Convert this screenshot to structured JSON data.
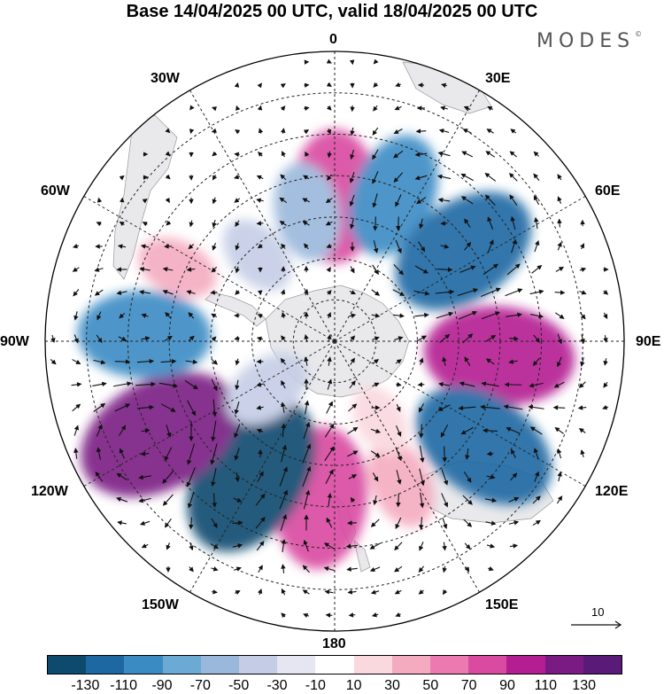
{
  "title": "Base 14/04/2025 00 UTC, valid 18/04/2025 00 UTC",
  "brand": "MODES",
  "brand_mark": "©",
  "longitude_labels": {
    "lon_0": "0",
    "lon_30e": "30E",
    "lon_60e": "60E",
    "lon_90e": "90E",
    "lon_120e": "120E",
    "lon_150e": "150E",
    "lon_180": "180",
    "lon_150w": "150W",
    "lon_120w": "120W",
    "lon_90w": "90W",
    "lon_60w": "60W",
    "lon_30w": "30W"
  },
  "reference_vector": "10",
  "colorbar": {
    "colors": [
      "#0e4a6e",
      "#1d68a3",
      "#3a8bc4",
      "#6aaad5",
      "#9ab8dc",
      "#c5cde6",
      "#e6e6f2",
      "#ffffff",
      "#f9d8de",
      "#f4abc0",
      "#ec7ab0",
      "#d94aa0",
      "#b41e92",
      "#7a1b83",
      "#5a1a78"
    ],
    "ticks": [
      "-130",
      "-110",
      "-90",
      "-70",
      "-50",
      "-30",
      "-10",
      "10",
      "30",
      "50",
      "70",
      "90",
      "110",
      "130"
    ]
  },
  "map_style": {
    "anomaly_cells": [
      {
        "lon": 0,
        "lat": -55,
        "value": 90,
        "color": "#d94aa0"
      },
      {
        "lon": 22,
        "lat": -52,
        "value": -80,
        "color": "#3a8bc4"
      },
      {
        "lon": -12,
        "lat": -58,
        "value": -50,
        "color": "#9ab8dc"
      },
      {
        "lon": 55,
        "lat": -52,
        "value": -110,
        "color": "#1d68a3"
      },
      {
        "lon": 95,
        "lat": -50,
        "value": 110,
        "color": "#b41e92"
      },
      {
        "lon": 125,
        "lat": -46,
        "value": -110,
        "color": "#1d68a3"
      },
      {
        "lon": 155,
        "lat": -52,
        "value": 40,
        "color": "#f4abc0"
      },
      {
        "lon": -175,
        "lat": -52,
        "value": 100,
        "color": "#d94aa0"
      },
      {
        "lon": -148,
        "lat": -52,
        "value": -130,
        "color": "#0e4a6e"
      },
      {
        "lon": -118,
        "lat": -42,
        "value": 130,
        "color": "#7a1b83"
      },
      {
        "lon": -88,
        "lat": -44,
        "value": -90,
        "color": "#3a8bc4"
      },
      {
        "lon": -65,
        "lat": -48,
        "value": 30,
        "color": "#f4abc0"
      },
      {
        "lon": -42,
        "lat": -62,
        "value": -30,
        "color": "#c5cde6"
      },
      {
        "lon": -125,
        "lat": -70,
        "value": -40,
        "color": "#c5cde6"
      },
      {
        "lon": 150,
        "lat": -68,
        "value": 20,
        "color": "#f9d8de"
      }
    ]
  }
}
